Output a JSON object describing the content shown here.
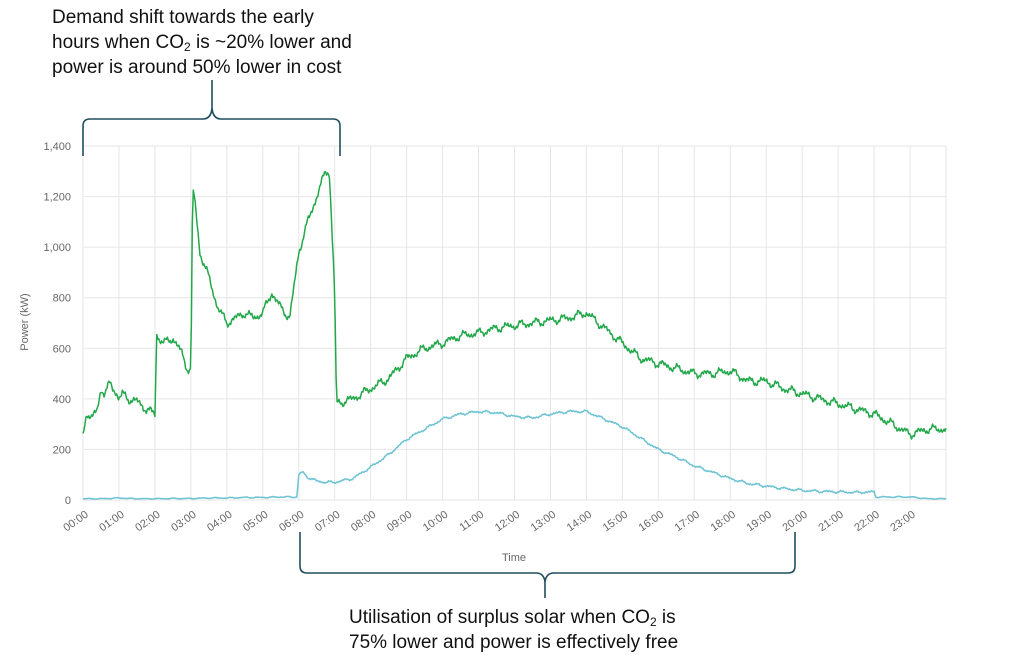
{
  "annotations": {
    "top": {
      "line1": "Demand shift towards the early",
      "line2_pre": "hours when CO",
      "line2_sub": "2",
      "line2_post": " is ~20% lower and",
      "line3": "power is around 50% lower in cost"
    },
    "bottom": {
      "line1_pre": "Utilisation of surplus solar when CO",
      "line1_sub": "2",
      "line1_post": " is",
      "line2": "75% lower and power is effectively free"
    }
  },
  "colors": {
    "demand": "#22a84a",
    "solar": "#6cc3d3",
    "grid": "#e6e6e6",
    "bracket": "#1f4e5f"
  },
  "chart_data": {
    "type": "line",
    "title": "",
    "xlabel": "Time",
    "ylabel": "Power (kW)",
    "ylim": [
      0,
      1400
    ],
    "yticks": [
      0,
      200,
      400,
      600,
      800,
      1000,
      1200,
      1400
    ],
    "ytick_labels": [
      "0",
      "200",
      "400",
      "600",
      "800",
      "1,000",
      "1,200",
      "1,400"
    ],
    "xlim": [
      0,
      24
    ],
    "xticks": [
      "00:00",
      "01:00",
      "02:00",
      "03:00",
      "04:00",
      "05:00",
      "06:00",
      "07:00",
      "08:00",
      "09:00",
      "10:00",
      "11:00",
      "12:00",
      "13:00",
      "14:00",
      "15:00",
      "16:00",
      "17:00",
      "18:00",
      "19:00",
      "20:00",
      "21:00",
      "22:00",
      "23:00"
    ],
    "grid": true,
    "series": [
      {
        "x": [
          0,
          0.1,
          0.25,
          0.4,
          0.5,
          0.6,
          0.75,
          0.9,
          1.0,
          1.1,
          1.25,
          1.5,
          1.75,
          2.0,
          2.05,
          2.1,
          2.25,
          2.5,
          2.75,
          2.9,
          3.0,
          3.05,
          3.1,
          3.25,
          3.5,
          3.75,
          4.0,
          4.25,
          4.5,
          4.75,
          5.0,
          5.25,
          5.5,
          5.75,
          6.0,
          6.25,
          6.5,
          6.75,
          6.85,
          7.0,
          7.05,
          7.25,
          7.5,
          8.0,
          8.5,
          9.0,
          9.5,
          10.0,
          10.5,
          11.0,
          11.5,
          12.0,
          12.5,
          13.0,
          13.5,
          14.0,
          14.5,
          15.0,
          15.5,
          16.0,
          16.5,
          17.0,
          17.5,
          18.0,
          18.5,
          19.0,
          19.5,
          20.0,
          20.5,
          21.0,
          21.5,
          22.0,
          22.5,
          23.0,
          23.5,
          24.0
        ],
        "values": [
          250,
          350,
          320,
          360,
          440,
          420,
          460,
          430,
          400,
          420,
          400,
          390,
          360,
          340,
          660,
          640,
          620,
          640,
          580,
          520,
          510,
          1220,
          1200,
          980,
          880,
          760,
          700,
          720,
          740,
          720,
          740,
          820,
          760,
          720,
          980,
          1100,
          1200,
          1300,
          1300,
          820,
          380,
          390,
          400,
          440,
          480,
          560,
          600,
          620,
          650,
          660,
          680,
          690,
          700,
          710,
          720,
          740,
          680,
          620,
          560,
          540,
          520,
          500,
          500,
          510,
          470,
          470,
          440,
          420,
          400,
          380,
          360,
          340,
          300,
          260,
          280,
          280
        ]
      },
      {
        "x": [
          0,
          0.5,
          1.0,
          1.5,
          2.0,
          2.5,
          3.0,
          3.5,
          4.0,
          4.5,
          5.0,
          5.5,
          5.95,
          6.0,
          6.1,
          6.25,
          6.5,
          6.75,
          7.0,
          7.5,
          8.0,
          8.5,
          9.0,
          9.5,
          10.0,
          10.5,
          11.0,
          11.5,
          12.0,
          12.5,
          13.0,
          13.5,
          14.0,
          14.5,
          15.0,
          15.5,
          16.0,
          16.5,
          17.0,
          17.5,
          18.0,
          18.5,
          19.0,
          19.5,
          20.0,
          20.5,
          21.0,
          21.5,
          22.0,
          22.05,
          22.5,
          23.0,
          23.5,
          24.0
        ],
        "values": [
          5,
          5,
          8,
          5,
          5,
          6,
          6,
          8,
          8,
          10,
          10,
          12,
          12,
          100,
          110,
          90,
          75,
          70,
          70,
          85,
          130,
          180,
          240,
          280,
          320,
          340,
          350,
          345,
          330,
          325,
          340,
          350,
          350,
          320,
          290,
          245,
          200,
          170,
          135,
          110,
          85,
          65,
          55,
          45,
          38,
          34,
          32,
          30,
          32,
          12,
          12,
          12,
          5,
          5
        ]
      }
    ]
  }
}
